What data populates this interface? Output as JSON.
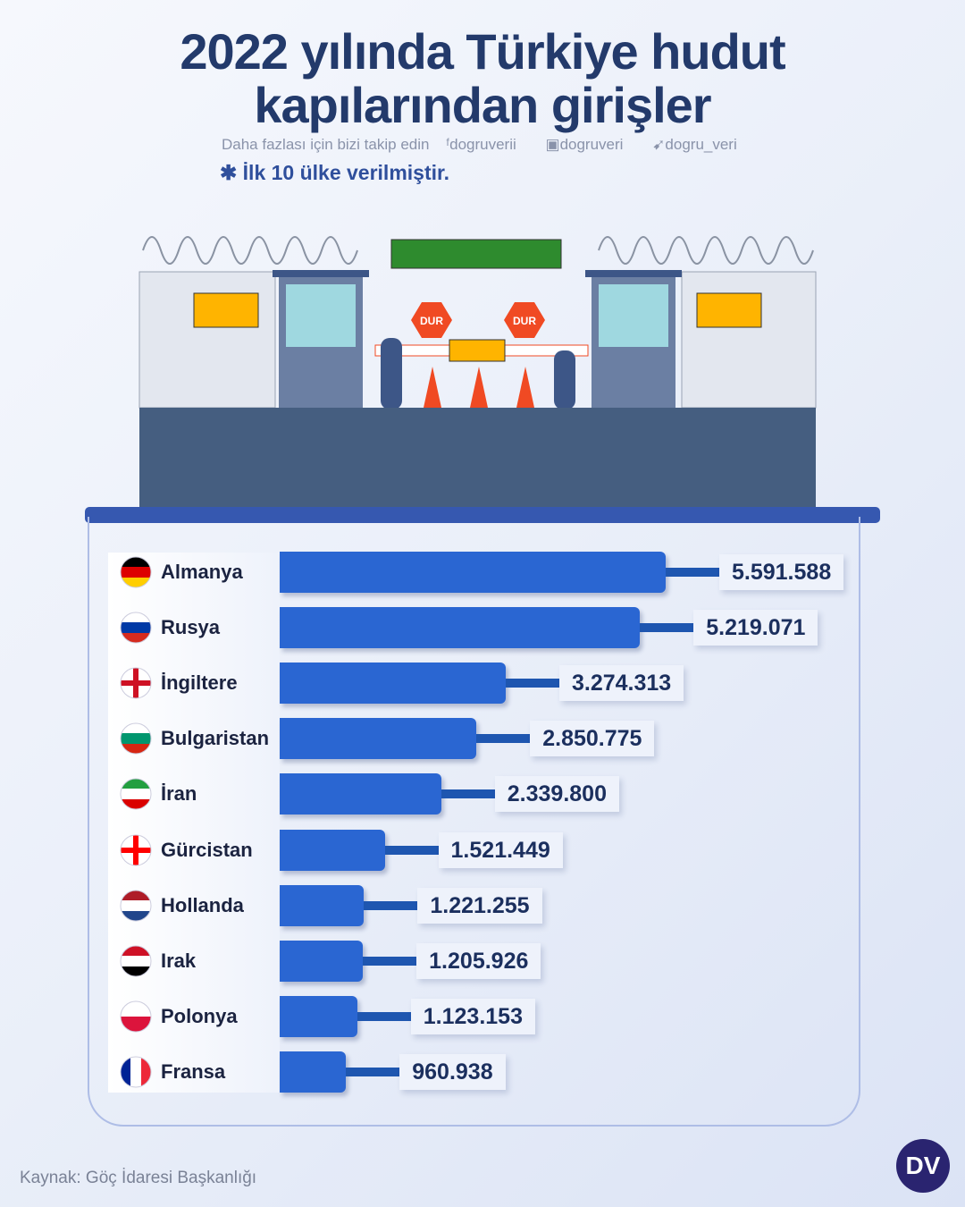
{
  "header": {
    "title_line1": "2022 yılında Türkiye hudut",
    "title_line2": "kapılarından girişler",
    "follow": "Daha fazlası için bizi takip edin",
    "facebook": "dogruverii",
    "instagram": "dogruveri",
    "twitter": "dogru_veri",
    "note": "✱ İlk 10 ülke verilmiştir."
  },
  "illustration": {
    "sign_left": "DUR",
    "sign_right": "DUR"
  },
  "chart_data": {
    "type": "bar",
    "orientation": "horizontal",
    "categories": [
      "Almanya",
      "Rusya",
      "İngiltere",
      "Bulgaristan",
      "İran",
      "Gürcistan",
      "Hollanda",
      "Irak",
      "Polonya",
      "Fransa"
    ],
    "values": [
      5591588,
      5219071,
      3274313,
      2850775,
      2339800,
      1521449,
      1221255,
      1205926,
      1123153,
      960938
    ],
    "value_labels": [
      "5.591.588",
      "5.219.071",
      "3.274.313",
      "2.850.775",
      "2.339.800",
      "1.521.449",
      "1.221.255",
      "1.205.926",
      "1.123.153",
      "960.938"
    ],
    "bar_color": "#2a66d2",
    "flags": [
      [
        "#000000",
        "#dd0000",
        "#ffce00"
      ],
      [
        "#ffffff",
        "#0039a6",
        "#d52b1e"
      ],
      [
        "cross",
        "#ffffff",
        "#ce1124"
      ],
      [
        "#ffffff",
        "#00966e",
        "#d62612"
      ],
      [
        "#239f40",
        "#ffffff",
        "#da0000"
      ],
      [
        "cross",
        "#ffffff",
        "#ff0000"
      ],
      [
        "#ae1c28",
        "#ffffff",
        "#21468b"
      ],
      [
        "#ce1126",
        "#ffffff",
        "#000000"
      ],
      [
        "#ffffff",
        "#dc143c"
      ],
      [
        "v",
        "#002395",
        "#ffffff",
        "#ed2939"
      ]
    ]
  },
  "footer": {
    "source": "Kaynak: Göç İdaresi Başkanlığı",
    "logo": "DV"
  }
}
